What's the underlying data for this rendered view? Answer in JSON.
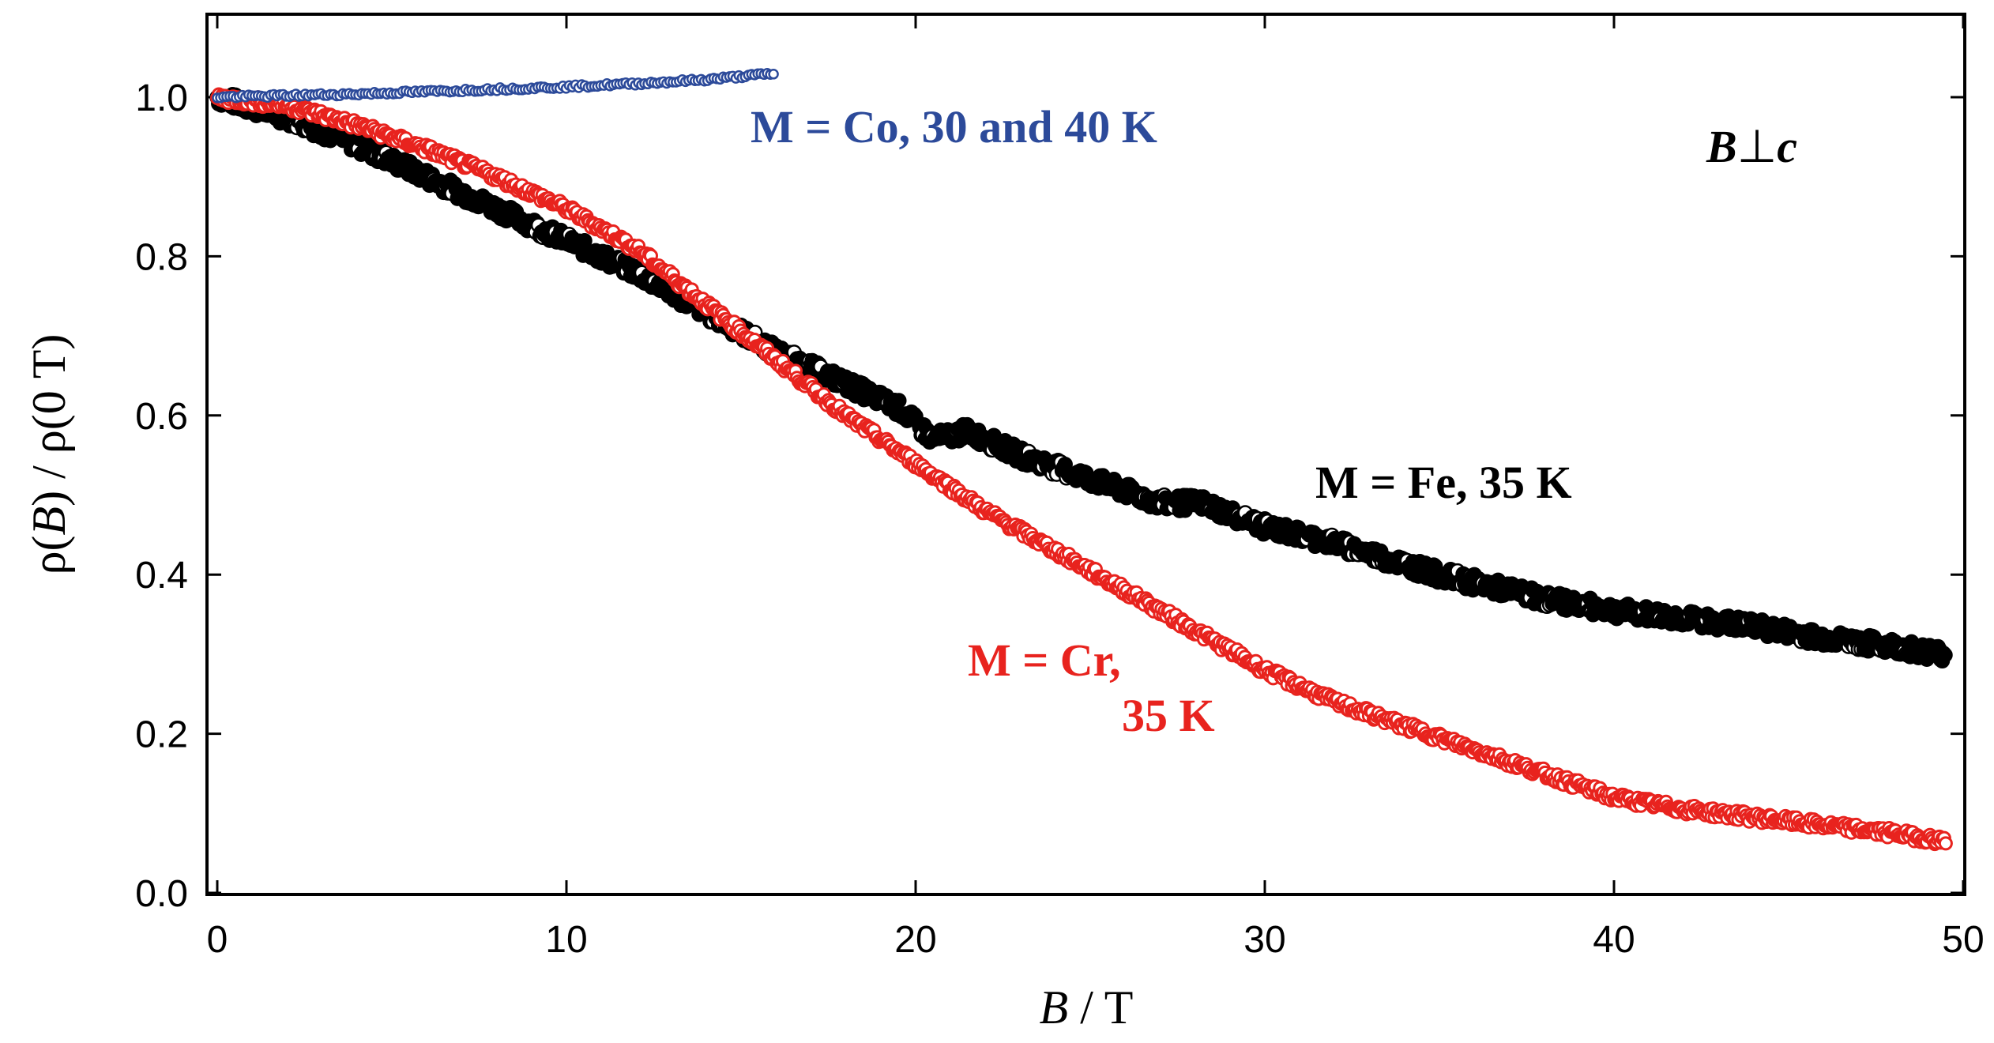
{
  "chart_data": {
    "type": "scatter",
    "xlabel": {
      "var": "B",
      "rest": " / T"
    },
    "ylabel": {
      "pre": "ρ(",
      "var": "B",
      "post": ") / ρ(0 T)"
    },
    "xlim": [
      0,
      50
    ],
    "ylim": [
      0,
      1.1
    ],
    "x_ticks": [
      0,
      10,
      20,
      30,
      40,
      50
    ],
    "x_tick_labels": [
      "0",
      "10",
      "20",
      "30",
      "40",
      "50"
    ],
    "y_ticks": [
      0,
      0.2,
      0.4,
      0.6,
      0.8,
      1.0
    ],
    "y_tick_labels": [
      "0.0",
      "0.2",
      "0.4",
      "0.6",
      "0.8",
      "1.0"
    ],
    "grid": false,
    "orientation_label": {
      "var": "B",
      "symbol": "⊥",
      "axis": "c"
    },
    "series": [
      {
        "name": "M = Co, 30 and 40 K",
        "color": "#2c4a9a",
        "marker": "open-circle-small",
        "x": [
          0,
          2,
          4,
          6,
          8,
          10,
          12,
          14,
          16
        ],
        "y": [
          1.0,
          1.002,
          1.004,
          1.007,
          1.01,
          1.013,
          1.017,
          1.022,
          1.03
        ]
      },
      {
        "name": "M = Fe, 35 K",
        "color": "#000000",
        "marker": "circle-black-outline",
        "x": [
          0,
          2,
          4,
          6,
          8,
          10,
          12,
          14,
          16,
          18,
          19.5,
          20.5,
          21.5,
          23,
          25,
          27,
          28.2,
          30,
          32,
          35,
          38,
          40,
          42,
          44,
          46,
          48,
          49.5
        ],
        "y": [
          1.0,
          0.975,
          0.94,
          0.9,
          0.86,
          0.82,
          0.78,
          0.73,
          0.68,
          0.64,
          0.61,
          0.57,
          0.58,
          0.55,
          0.52,
          0.49,
          0.49,
          0.46,
          0.44,
          0.4,
          0.37,
          0.355,
          0.345,
          0.335,
          0.32,
          0.31,
          0.3
        ]
      },
      {
        "name": "M = Cr, 35 K",
        "color": "#e8231e",
        "marker": "circle-white-outline",
        "x": [
          0,
          2,
          4,
          6,
          8,
          10,
          12,
          14,
          16,
          18,
          20,
          22,
          24,
          26,
          28,
          30,
          32,
          34,
          36,
          38,
          40,
          42,
          44,
          46,
          48,
          49.5
        ],
        "y": [
          1.0,
          0.99,
          0.965,
          0.935,
          0.9,
          0.86,
          0.81,
          0.74,
          0.67,
          0.6,
          0.54,
          0.48,
          0.43,
          0.38,
          0.33,
          0.28,
          0.24,
          0.21,
          0.18,
          0.15,
          0.12,
          0.105,
          0.095,
          0.085,
          0.075,
          0.065
        ]
      }
    ],
    "annotations": [
      {
        "lines": [
          "M = Co, 30 and 40 K"
        ],
        "series": 0
      },
      {
        "lines": [
          "M = Fe, 35 K"
        ],
        "series": 1
      },
      {
        "lines": [
          "M = Cr,",
          "35 K"
        ],
        "series": 2
      }
    ]
  }
}
